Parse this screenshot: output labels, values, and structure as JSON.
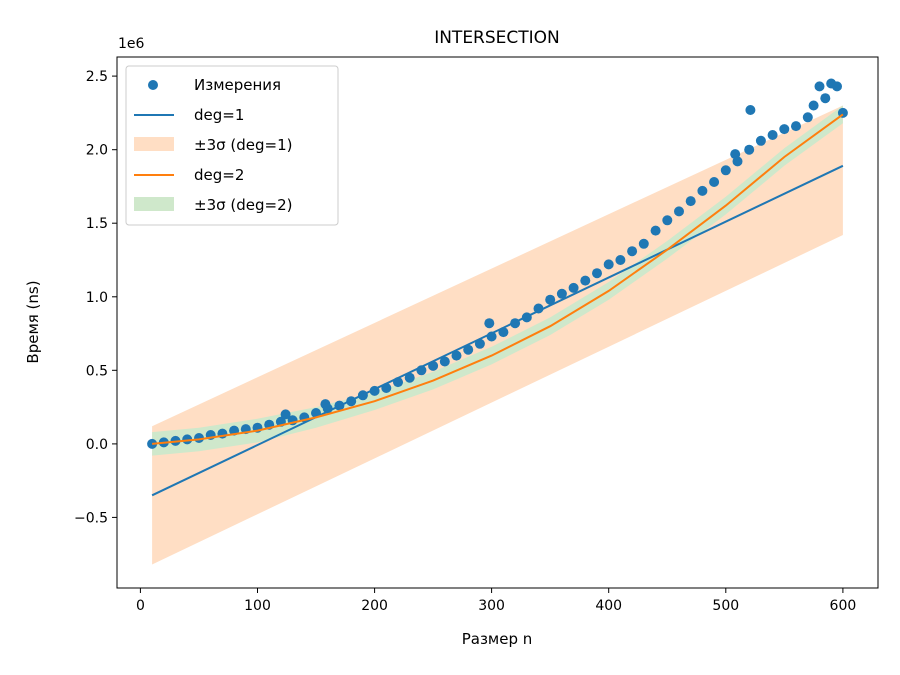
{
  "chart_data": {
    "type": "scatter",
    "title": "INTERSECTION",
    "xlabel": "Размер n",
    "ylabel": "Время (ns)",
    "y_offset_label": "1e6",
    "xlim": [
      -20,
      630
    ],
    "ylim": [
      -0.98,
      2.63
    ],
    "xticks": [
      0,
      100,
      200,
      300,
      400,
      500,
      600
    ],
    "xtick_labels": [
      "0",
      "100",
      "200",
      "300",
      "400",
      "500",
      "600"
    ],
    "yticks": [
      -0.5,
      0.0,
      0.5,
      1.0,
      1.5,
      2.0,
      2.5
    ],
    "ytick_labels": [
      "−0.5",
      "0.0",
      "0.5",
      "1.0",
      "1.5",
      "2.0",
      "2.5"
    ],
    "grid": false,
    "legend_position": "top-left",
    "legend": [
      "Измерения",
      "deg=1",
      "±3σ (deg=1)",
      "deg=2",
      "±3σ (deg=2)"
    ],
    "colors": {
      "points": "#1f77b4",
      "deg1_line": "#1f77b4",
      "deg1_band": "#ffdec4",
      "deg2_line": "#ff7f0e",
      "deg2_band": "#cfe8cb"
    },
    "x_range": [
      10,
      600
    ],
    "series": [
      {
        "name": "Измерения",
        "kind": "scatter",
        "x": [
          10,
          20,
          30,
          40,
          50,
          60,
          70,
          80,
          90,
          100,
          110,
          120,
          124,
          130,
          140,
          150,
          158,
          160,
          170,
          180,
          190,
          200,
          210,
          220,
          230,
          240,
          250,
          260,
          270,
          280,
          290,
          298,
          300,
          310,
          320,
          330,
          340,
          350,
          360,
          370,
          380,
          390,
          400,
          410,
          420,
          430,
          440,
          450,
          460,
          470,
          480,
          490,
          500,
          508,
          510,
          520,
          521,
          530,
          540,
          550,
          560,
          570,
          575,
          580,
          585,
          590,
          595,
          600
        ],
        "y": [
          0.0,
          0.01,
          0.02,
          0.03,
          0.04,
          0.06,
          0.07,
          0.09,
          0.1,
          0.11,
          0.13,
          0.15,
          0.2,
          0.16,
          0.18,
          0.21,
          0.27,
          0.24,
          0.26,
          0.29,
          0.33,
          0.36,
          0.38,
          0.42,
          0.45,
          0.5,
          0.53,
          0.56,
          0.6,
          0.64,
          0.68,
          0.82,
          0.73,
          0.76,
          0.82,
          0.86,
          0.92,
          0.98,
          1.02,
          1.06,
          1.11,
          1.16,
          1.22,
          1.25,
          1.31,
          1.36,
          1.45,
          1.52,
          1.58,
          1.65,
          1.72,
          1.78,
          1.86,
          1.97,
          1.92,
          2.0,
          2.27,
          2.06,
          2.1,
          2.14,
          2.16,
          2.22,
          2.3,
          2.43,
          2.35,
          2.45,
          2.43,
          2.25
        ]
      },
      {
        "name": "deg=1",
        "kind": "line",
        "x": [
          10,
          600
        ],
        "y": [
          -0.35,
          1.89
        ]
      },
      {
        "name": "±3σ (deg=1)",
        "kind": "band",
        "x": [
          10,
          600
        ],
        "y_low": [
          -0.82,
          1.42
        ],
        "y_high": [
          0.12,
          2.3
        ]
      },
      {
        "name": "deg=2",
        "kind": "line",
        "x": [
          10,
          50,
          100,
          150,
          200,
          250,
          300,
          350,
          400,
          450,
          500,
          550,
          600
        ],
        "y": [
          0.0,
          0.03,
          0.09,
          0.18,
          0.29,
          0.43,
          0.6,
          0.8,
          1.04,
          1.32,
          1.62,
          1.95,
          2.24
        ]
      },
      {
        "name": "±3σ (deg=2)",
        "kind": "band",
        "x": [
          10,
          50,
          100,
          150,
          200,
          250,
          300,
          350,
          400,
          450,
          500,
          550,
          600
        ],
        "y_low": [
          -0.08,
          -0.05,
          0.01,
          0.11,
          0.23,
          0.37,
          0.54,
          0.74,
          0.98,
          1.26,
          1.56,
          1.89,
          2.18
        ],
        "y_high": [
          0.08,
          0.11,
          0.17,
          0.25,
          0.35,
          0.49,
          0.66,
          0.86,
          1.1,
          1.38,
          1.68,
          2.01,
          2.3
        ]
      }
    ]
  }
}
